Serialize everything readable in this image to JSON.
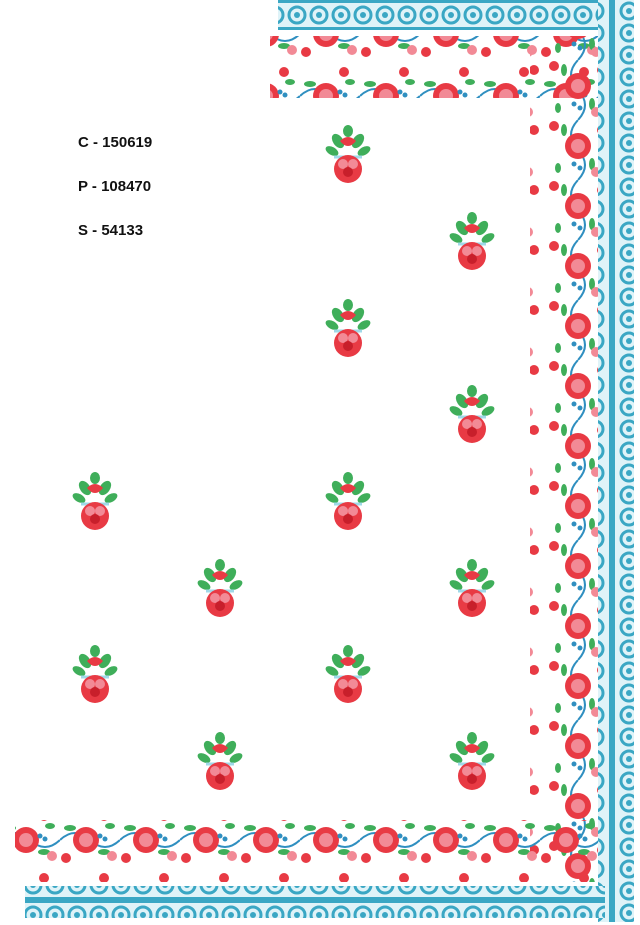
{
  "design_info": {
    "color_count": "C - 150619",
    "p_value": "P - 108470",
    "s_value": "S - 54133"
  },
  "colors": {
    "lace_blue": "#3aa7c4",
    "lace_light": "#9fd9e8",
    "rose_red": "#e83a44",
    "rose_pink": "#f28a96",
    "leaf_green": "#3fae5a",
    "stem_blue": "#2f8fc0"
  },
  "motif": {
    "name": "rose-bouquet-motif",
    "count": 12
  }
}
